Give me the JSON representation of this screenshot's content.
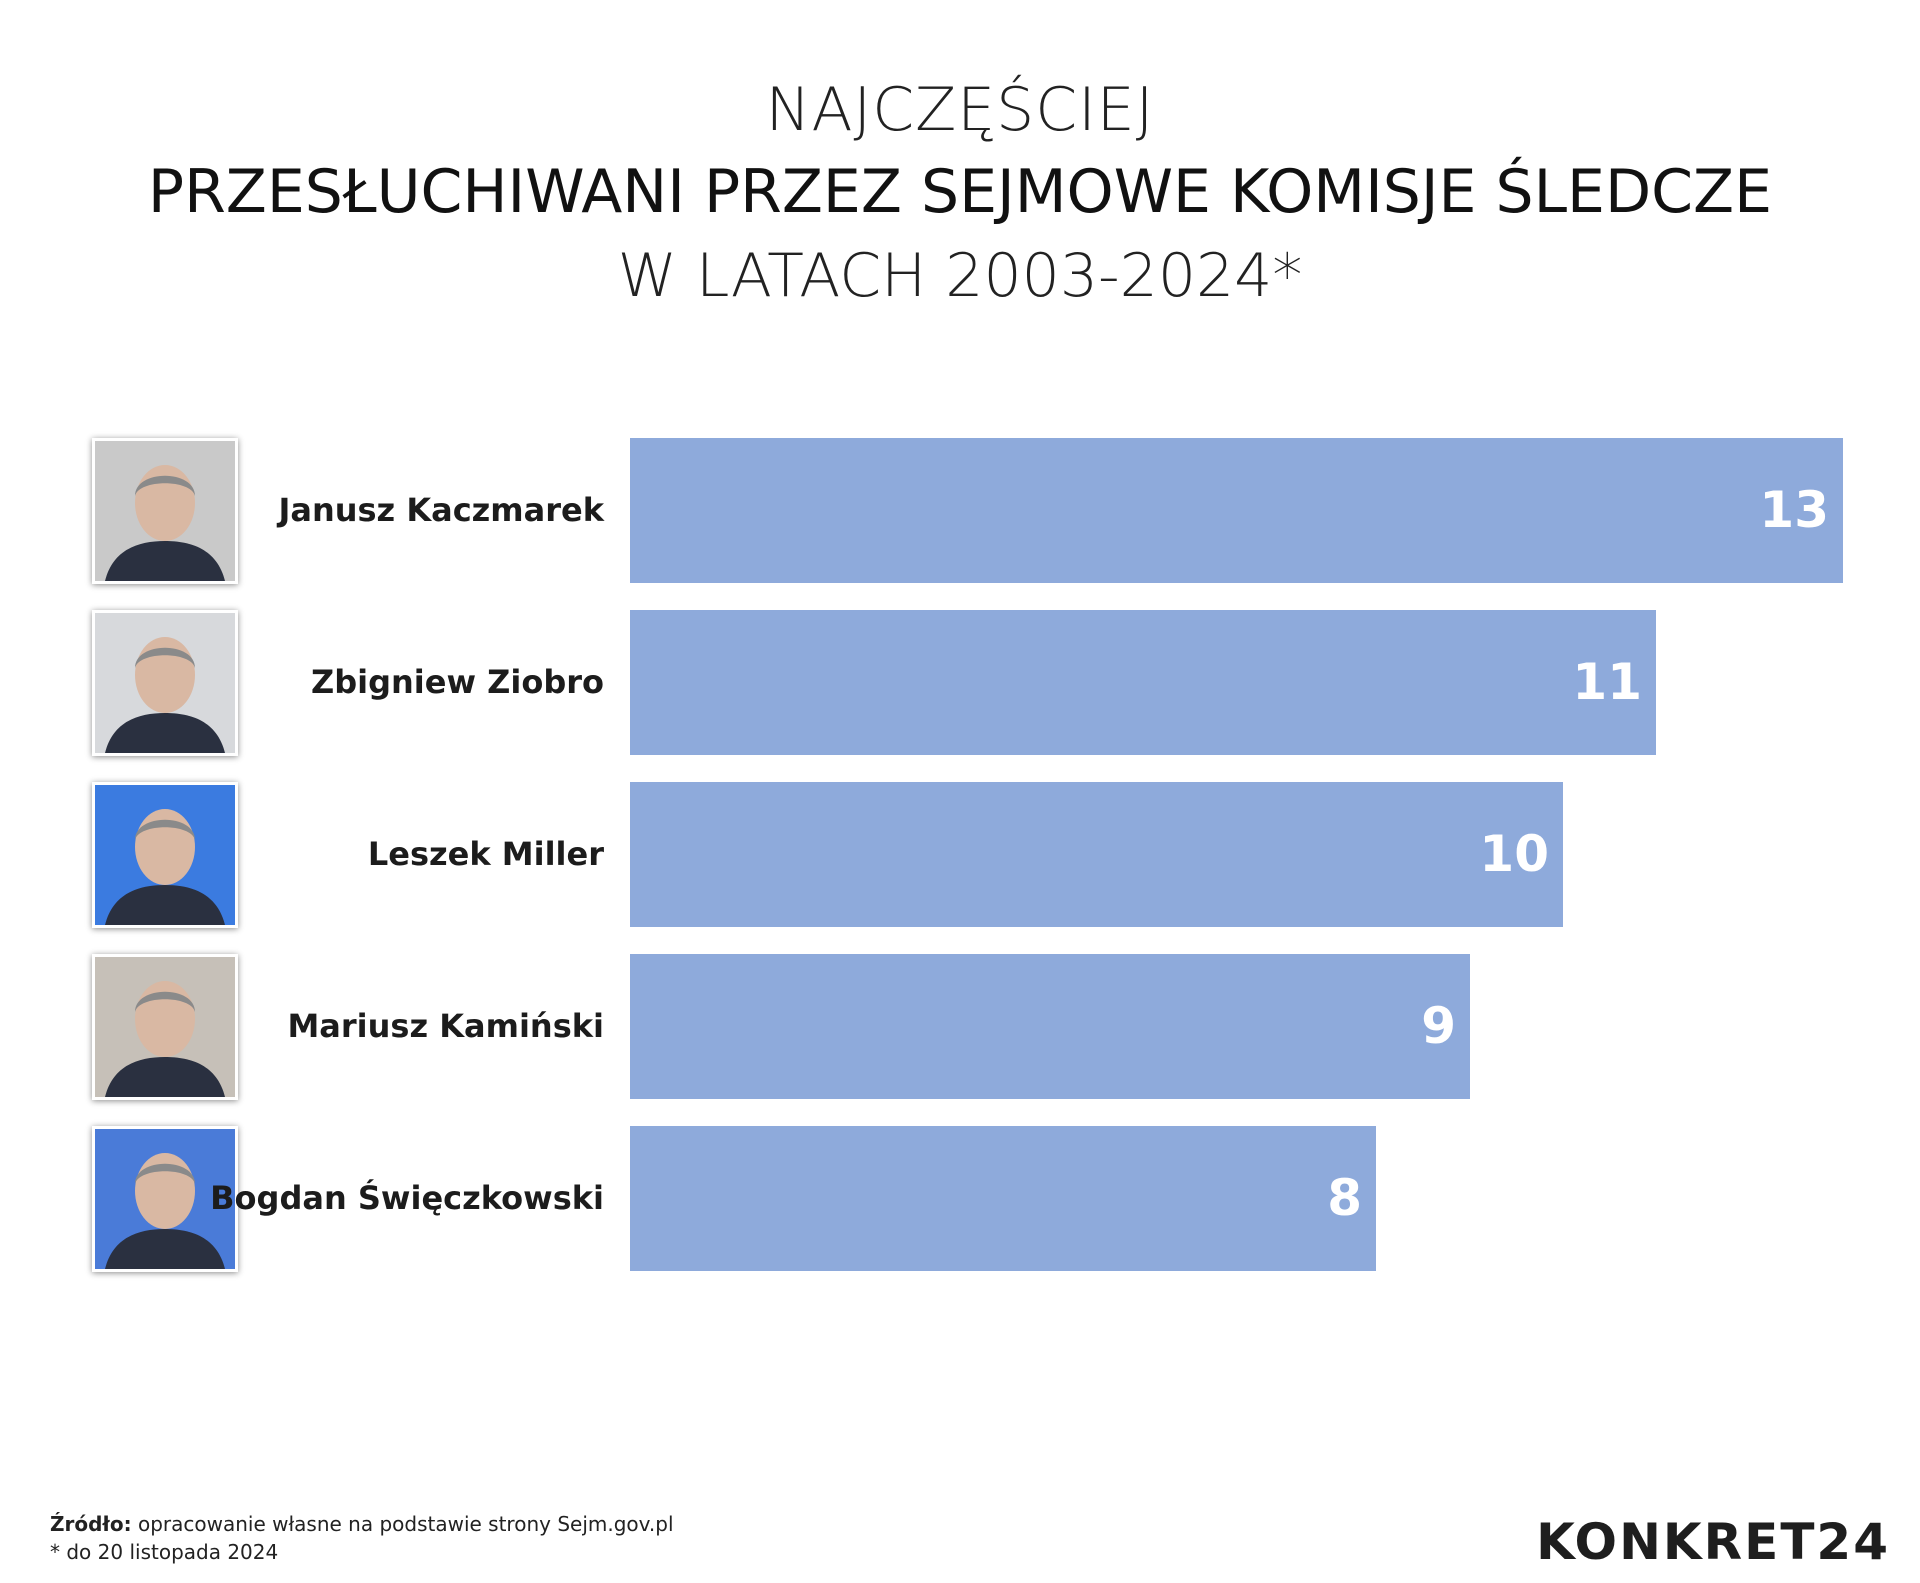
{
  "header": {
    "line1": "NAJCZĘŚCIEJ",
    "line2": "PRZESŁUCHIWANI PRZEZ SEJMOWE KOMISJE ŚLEDCZE",
    "line3": "W LATACH 2003-2024*"
  },
  "chart_data": {
    "type": "bar",
    "orientation": "horizontal",
    "categories": [
      "Janusz Kaczmarek",
      "Zbigniew Ziobro",
      "Leszek Miller",
      "Mariusz Kamiński",
      "Bogdan Święczkowski"
    ],
    "values": [
      13,
      11,
      10,
      9,
      8
    ],
    "bar_color": "#8eaadb",
    "value_label_color": "#ffffff",
    "xlim": [
      0,
      13
    ],
    "grid": false,
    "photo_backgrounds": [
      "#c9c9c9",
      "#d7d9dc",
      "#3b7be0",
      "#c6c0b8",
      "#4a7bd8"
    ]
  },
  "footer": {
    "source_label": "Źródło:",
    "source_text": "opracowanie własne na podstawie strony Sejm.gov.pl",
    "note": "* do 20 listopada 2024"
  },
  "logo": {
    "text": "KONKRET24"
  }
}
